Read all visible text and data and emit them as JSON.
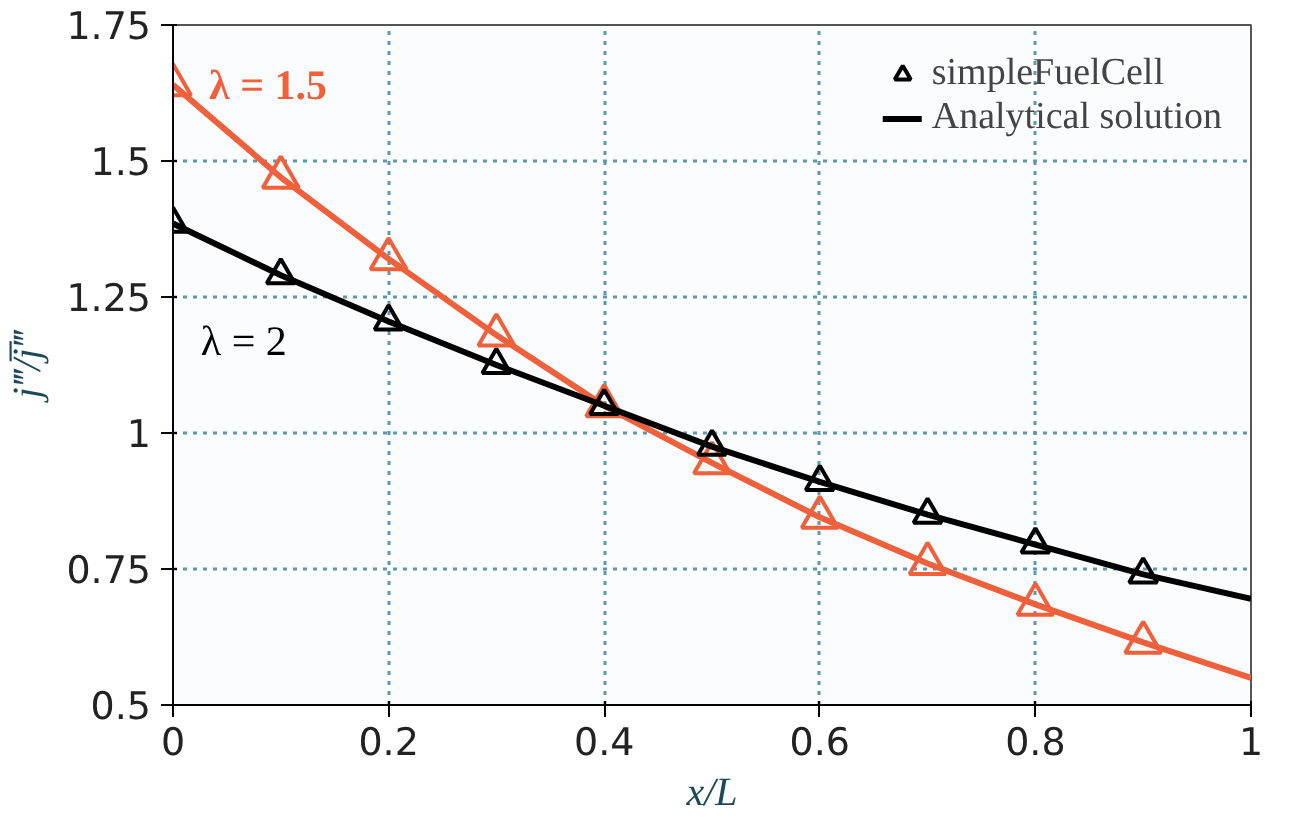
{
  "chart_data": {
    "type": "line",
    "xlabel": "x/L",
    "ylabel": "j‴/j̅‴",
    "xlim": [
      0,
      1
    ],
    "ylim": [
      0.5,
      1.75
    ],
    "xticks": [
      0,
      0.2,
      0.4,
      0.6,
      0.8,
      1
    ],
    "yticks": [
      0.5,
      0.75,
      1,
      1.25,
      1.5,
      1.75
    ],
    "grid": true,
    "legend": "top right",
    "line_style": "solid",
    "series": [
      {
        "color": "#f0603a",
        "x": [
          0,
          0.1,
          0.2,
          0.3,
          0.4,
          0.5,
          0.6,
          0.7,
          0.8,
          0.9,
          1
        ],
        "values": [
          1.64,
          1.47,
          1.32,
          1.18,
          1.05,
          0.945,
          0.845,
          0.76,
          0.685,
          0.615,
          0.55
        ]
      },
      {
        "type": "scatter",
        "marker": "triangle",
        "color": "#f0603a",
        "x": [
          0,
          0.1,
          0.2,
          0.3,
          0.4,
          0.5,
          0.6,
          0.7,
          0.8,
          0.9
        ],
        "values": [
          1.64,
          1.47,
          1.32,
          1.18,
          1.05,
          0.945,
          0.845,
          0.76,
          0.685,
          0.615
        ]
      },
      {
        "name": "Analytical solution",
        "color": "#000000",
        "x": [
          0,
          0.1,
          0.2,
          0.3,
          0.4,
          0.5,
          0.6,
          0.7,
          0.8,
          0.9,
          1
        ],
        "values": [
          1.385,
          1.29,
          1.205,
          1.125,
          1.05,
          0.975,
          0.91,
          0.85,
          0.795,
          0.74,
          0.695
        ]
      },
      {
        "type": "scatter",
        "name": "simpleFuelCell",
        "marker": "triangle",
        "color": "#000000",
        "x": [
          0,
          0.1,
          0.2,
          0.3,
          0.4,
          0.5,
          0.6,
          0.7,
          0.8,
          0.9
        ],
        "values": [
          1.385,
          1.29,
          1.205,
          1.125,
          1.05,
          0.975,
          0.91,
          0.85,
          0.795,
          0.74
        ]
      }
    ],
    "annotations": [
      {
        "text": "λ = 1.5",
        "x": 0,
        "y": 1.64
      },
      {
        "text": "λ = 2",
        "x": 0.1,
        "y": 1.29
      }
    ]
  }
}
